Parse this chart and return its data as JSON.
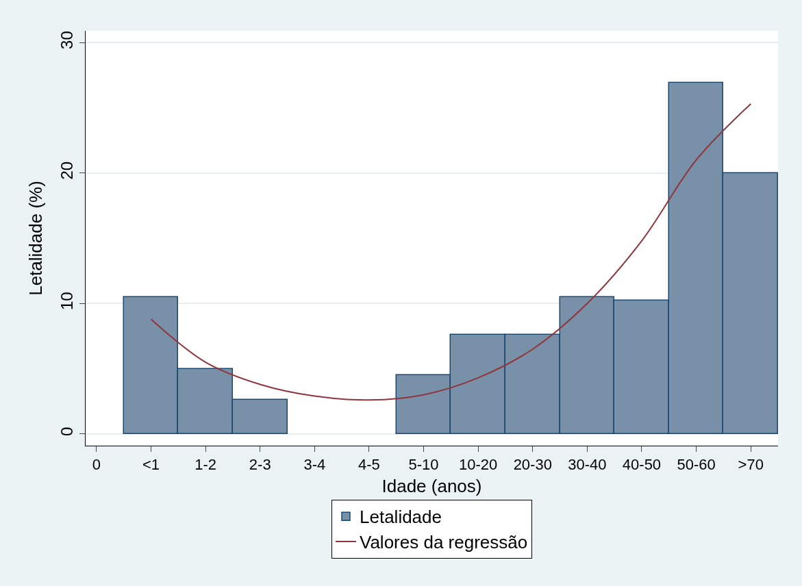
{
  "chart_data": {
    "type": "bar",
    "xlabel": "Idade (anos)",
    "ylabel": "Letalidade (%)",
    "categories": [
      "0",
      "<1",
      "1-2",
      "2-3",
      "3-4",
      "4-5",
      "5-10",
      "10-20",
      "20-30",
      "30-40",
      "40-50",
      "50-60",
      ">70"
    ],
    "ylim": [
      -0.9,
      30.9
    ],
    "yticks": [
      0,
      10,
      20,
      30
    ],
    "grid": "y",
    "legend": "bottom",
    "series": [
      {
        "name": "Letalidade",
        "color": "#7890a8",
        "values": [
          null,
          10.5,
          5.0,
          2.6,
          null,
          null,
          4.5,
          7.6,
          7.6,
          10.5,
          10.2,
          26.9,
          20.0
        ]
      },
      {
        "name": "Valores da regressão",
        "type": "line",
        "color": "#90353b",
        "values": [
          null,
          8.8,
          5.5,
          3.8,
          2.9,
          2.6,
          3.0,
          4.3,
          6.5,
          10.0,
          14.8,
          21.0,
          25.3
        ]
      }
    ]
  }
}
